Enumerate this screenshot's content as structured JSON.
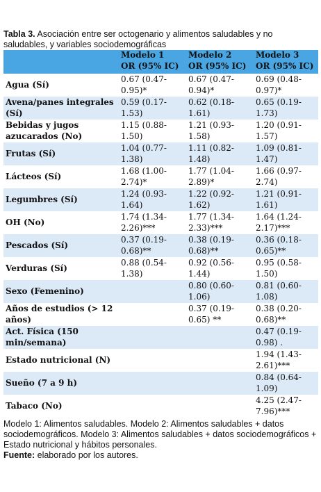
{
  "caption": {
    "label": "Tabla 3.",
    "text": "Asociación entre ser octogenario y alimentos saludables y no saludables, y variables sociodemográficas"
  },
  "table": {
    "columns": [
      {
        "model": "Modelo 1",
        "metric": "OR (95% IC)"
      },
      {
        "model": "Modelo 2",
        "metric": "OR (95% IC)"
      },
      {
        "model": "Modelo 3",
        "metric": "OR (95% IC)"
      }
    ],
    "rows": [
      {
        "label": "Agua (Sí)",
        "values": [
          "0.67 (0.47-0.95)*",
          "0.67 (0.47-0.94)*",
          "0.69 (0.48-0.97)*"
        ]
      },
      {
        "label": "Avena/panes integrales (Sí)",
        "values": [
          "0.59 (0.17-1.53)",
          "0.62 (0.18-1.61)",
          "0.65 (0.19-1.73)"
        ]
      },
      {
        "label": "Bebidas y jugos azucarados (No)",
        "values": [
          "1.15 (0.88-1.50)",
          "1.21 (0.93-1.58)",
          "1.20 (0.91-1.57)"
        ]
      },
      {
        "label": "Frutas (Sí)",
        "values": [
          "1.04 (0.77-1.38)",
          "1.11 (0.82-1.48)",
          "1.09 (0.81-1.47)"
        ]
      },
      {
        "label": "Lácteos (Sí)",
        "values": [
          "1.68 (1.00-2.74)*",
          "1.77 (1.04-2.89)*",
          "1.66 (0.97-2.74)"
        ]
      },
      {
        "label": "Legumbres (Sí)",
        "values": [
          "1.24 (0.93-1.64)",
          "1.22 (0.92-1.62)",
          "1.21 (0.91-1.61)"
        ]
      },
      {
        "label": "OH (No)",
        "values": [
          "1.74 (1.34-2.26)***",
          "1.77 (1.34-2.33)***",
          "1.64 (1.24-2.17)***"
        ]
      },
      {
        "label": "Pescados (Sí)",
        "values": [
          "0.37 (0.19-0.68)**",
          "0.38 (0.19-0.68)**",
          "0.36 (0.18-0.65)**"
        ]
      },
      {
        "label": "Verduras (Sí)",
        "values": [
          "0.88 (0.54-1.38)",
          "0.92 (0.56-1.44)",
          "0.95 (0.58-1.50)"
        ]
      },
      {
        "label": "Sexo (Femenino)",
        "values": [
          null,
          "0.80 (0.60-1.06)",
          "0.81 (0.60-1.08)"
        ]
      },
      {
        "label": "Años de estudios (> 12 años)",
        "values": [
          null,
          "0.37 (0.19-0.65) **",
          "0.38 (0.20-0.68)**"
        ]
      },
      {
        "label": "Act. Física (150 min/semana)",
        "values": [
          null,
          null,
          "0.47 (0.19-0.98) ."
        ]
      },
      {
        "label": "Estado nutricional (N)",
        "values": [
          null,
          null,
          "1.94 (1.43-2.61)***"
        ]
      },
      {
        "label": "Sueño (7 a 9 h)",
        "values": [
          null,
          null,
          "0.84 (0.64-1.09)"
        ]
      },
      {
        "label": "Tabaco (No)",
        "values": [
          null,
          null,
          "4.25 (2.47-7.96)***"
        ]
      }
    ]
  },
  "footer": {
    "note": "Modelo 1: Alimentos saludables. Modelo 2: Alimentos saludables + datos sociodemográficos. Modelo 3: Alimentos saludables + datos sociodemográficos + Estado nutricional y hábitos personales.",
    "source_label": "Fuente:",
    "source_text": "elaborado por los autores."
  }
}
